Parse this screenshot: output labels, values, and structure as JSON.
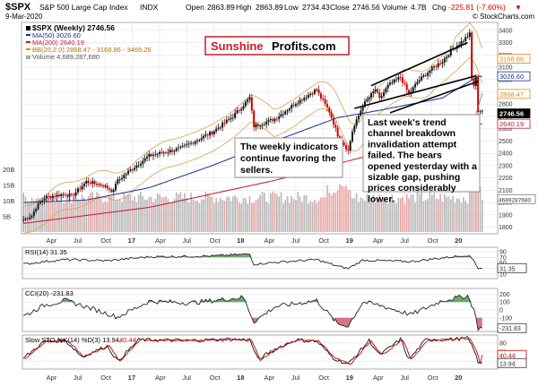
{
  "header": {
    "symbol": "$SPX",
    "name": "S&P 500 Large Cap Index",
    "exchange": "INDX",
    "date": "9-Mar-2020",
    "open_label": "Open",
    "open": "2863.89",
    "high_label": "High",
    "high": "2863.89",
    "low_label": "Low",
    "low": "2734.43",
    "close_label": "Close",
    "close": "2746.56",
    "volume_label": "Volume",
    "volume": "4.7B",
    "chg_label": "Chg",
    "chg": "-225.81 (-7.60%)",
    "chg_arrow": "▼",
    "watermark": "© StockCharts.com",
    "colors": {
      "up": "#000000",
      "down": "#cc0000"
    }
  },
  "legend": {
    "main": "$SPX (Weekly) 2746.56",
    "ma50": "MA(50) 3026.60",
    "ma200": "MA(200) 2640.19",
    "bb": "BB(20,2.0) 2868.47 - 3168.86 - 3469.26",
    "volume": "Volume 4,689,287,680"
  },
  "brand": {
    "part1": "Sunshine",
    "part2": "Profits.com"
  },
  "annotations": {
    "weekly": "The weekly indicators continue favoring the sellers.",
    "trend": "Last week's trend channel breakdown invalidation attempt failed. The bears opened yesterday with a sizable gap, pushing prices considerably lower."
  },
  "price_tags": [
    "3168.86",
    "3026.60",
    "2868.47",
    "2746.56",
    "2640.19"
  ],
  "volume_tag": "4689287680",
  "panels": {
    "rsi": {
      "label": "RSI(14) 31.35",
      "value_tag": "31.35",
      "ticks": [
        "90",
        "70",
        "50",
        "30",
        "10"
      ]
    },
    "cci": {
      "label": "CCI(20) -231.83",
      "value_tag": "-231.83",
      "ticks": [
        "200",
        "100",
        "0",
        "-100"
      ]
    },
    "sto": {
      "label_part1": "Slow STO %K(14) %D(3) 13.94,",
      "label_part2": "40.44",
      "tag_d": "40.44",
      "tag_k": "13.94",
      "ticks": [
        "80",
        "50",
        "20"
      ]
    }
  },
  "chart_data": {
    "type": "candlestick",
    "title": "$SPX S&P 500 Large Cap Index (Weekly)",
    "x_tick_labels": [
      "Apr",
      "Jul",
      "Oct",
      "17",
      "Apr",
      "Jul",
      "Oct",
      "18",
      "Apr",
      "Jul",
      "Oct",
      "19",
      "Apr",
      "Jul",
      "Oct",
      "20"
    ],
    "x_tick_weeks": [
      13,
      26,
      39,
      52,
      65,
      78,
      91,
      104,
      117,
      130,
      143,
      156,
      169,
      182,
      195,
      208
    ],
    "y_ticks": [
      1800,
      1900,
      2000,
      2100,
      2200,
      2300,
      2400,
      2500,
      2600,
      2700,
      2800,
      2900,
      3000,
      3100,
      3200,
      3300,
      3400
    ],
    "ylim": [
      1760,
      3450
    ],
    "volume_ticks": [
      "20B",
      "15B",
      "10B",
      "5B"
    ],
    "volume_ylim_B": [
      0,
      20
    ],
    "weeks": 220,
    "close_anchors": [
      [
        0,
        1860
      ],
      [
        4,
        1895
      ],
      [
        6,
        1960
      ],
      [
        10,
        2040
      ],
      [
        20,
        2070
      ],
      [
        23,
        2050
      ],
      [
        26,
        2100
      ],
      [
        30,
        2170
      ],
      [
        38,
        2140
      ],
      [
        43,
        2090
      ],
      [
        44,
        2160
      ],
      [
        50,
        2250
      ],
      [
        60,
        2380
      ],
      [
        75,
        2440
      ],
      [
        90,
        2570
      ],
      [
        100,
        2700
      ],
      [
        108,
        2850
      ],
      [
        110,
        2620
      ],
      [
        120,
        2680
      ],
      [
        130,
        2810
      ],
      [
        140,
        2920
      ],
      [
        141,
        2880
      ],
      [
        146,
        2740
      ],
      [
        150,
        2550
      ],
      [
        155,
        2420
      ],
      [
        157,
        2580
      ],
      [
        162,
        2790
      ],
      [
        168,
        2920
      ],
      [
        170,
        2840
      ],
      [
        174,
        2950
      ],
      [
        180,
        3020
      ],
      [
        184,
        2880
      ],
      [
        188,
        2980
      ],
      [
        195,
        3090
      ],
      [
        200,
        3150
      ],
      [
        205,
        3250
      ],
      [
        210,
        3320
      ],
      [
        213,
        3370
      ],
      [
        214,
        3000
      ],
      [
        215,
        2950
      ],
      [
        216,
        3010
      ],
      [
        217,
        2746
      ]
    ],
    "ma50_anchors": [
      [
        0,
        2000
      ],
      [
        30,
        2020
      ],
      [
        60,
        2120
      ],
      [
        90,
        2300
      ],
      [
        120,
        2500
      ],
      [
        150,
        2690
      ],
      [
        170,
        2750
      ],
      [
        200,
        2850
      ],
      [
        217,
        3026
      ]
    ],
    "ma200_anchors": [
      [
        0,
        1830
      ],
      [
        60,
        1960
      ],
      [
        120,
        2180
      ],
      [
        160,
        2360
      ],
      [
        190,
        2480
      ],
      [
        217,
        2640
      ]
    ],
    "bb_mid_anchors": [
      [
        150,
        2640
      ],
      [
        170,
        2800
      ],
      [
        200,
        3000
      ],
      [
        214,
        3180
      ],
      [
        217,
        3168
      ]
    ],
    "trend_upper": [
      [
        166,
        2950
      ],
      [
        212,
        3300
      ]
    ],
    "trend_lower": [
      [
        158,
        2765
      ],
      [
        216,
        3030
      ]
    ],
    "trend_lower2": [
      [
        175,
        2730
      ],
      [
        217,
        2985
      ]
    ],
    "rsi": {
      "ylim": [
        0,
        100
      ],
      "last": 31.35,
      "anchors": [
        [
          0,
          45
        ],
        [
          10,
          55
        ],
        [
          20,
          62
        ],
        [
          40,
          58
        ],
        [
          60,
          72
        ],
        [
          90,
          75
        ],
        [
          108,
          82
        ],
        [
          110,
          45
        ],
        [
          120,
          52
        ],
        [
          140,
          62
        ],
        [
          150,
          38
        ],
        [
          155,
          30
        ],
        [
          162,
          60
        ],
        [
          170,
          58
        ],
        [
          185,
          55
        ],
        [
          200,
          68
        ],
        [
          212,
          78
        ],
        [
          215,
          60
        ],
        [
          217,
          31.35
        ]
      ]
    },
    "cci": {
      "ylim": [
        -250,
        250
      ],
      "last": -231.83,
      "anchors": [
        [
          0,
          -80
        ],
        [
          10,
          60
        ],
        [
          20,
          120
        ],
        [
          30,
          40
        ],
        [
          45,
          -90
        ],
        [
          60,
          110
        ],
        [
          80,
          90
        ],
        [
          105,
          160
        ],
        [
          110,
          -150
        ],
        [
          120,
          40
        ],
        [
          140,
          120
        ],
        [
          150,
          -180
        ],
        [
          155,
          -200
        ],
        [
          162,
          100
        ],
        [
          170,
          60
        ],
        [
          185,
          -60
        ],
        [
          200,
          120
        ],
        [
          212,
          180
        ],
        [
          215,
          10
        ],
        [
          217,
          -231.83
        ]
      ]
    },
    "sto": {
      "ylim": [
        0,
        100
      ],
      "k_last": 13.94,
      "d_last": 40.44,
      "anchors": [
        [
          0,
          30
        ],
        [
          10,
          85
        ],
        [
          20,
          88
        ],
        [
          28,
          35
        ],
        [
          40,
          70
        ],
        [
          45,
          20
        ],
        [
          55,
          90
        ],
        [
          80,
          88
        ],
        [
          100,
          92
        ],
        [
          108,
          90
        ],
        [
          112,
          25
        ],
        [
          120,
          60
        ],
        [
          130,
          90
        ],
        [
          140,
          85
        ],
        [
          148,
          30
        ],
        [
          155,
          10
        ],
        [
          165,
          88
        ],
        [
          170,
          40
        ],
        [
          180,
          92
        ],
        [
          184,
          25
        ],
        [
          192,
          90
        ],
        [
          205,
          92
        ],
        [
          212,
          95
        ],
        [
          215,
          60
        ],
        [
          217,
          13.94
        ]
      ]
    }
  }
}
